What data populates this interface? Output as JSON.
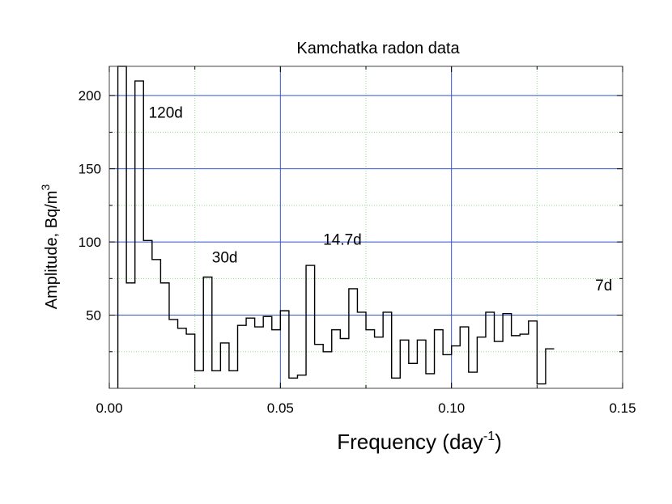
{
  "chart_data": {
    "type": "step",
    "title": "Kamchatka radon data",
    "xlabel": "Frequency (day",
    "xlabel_sup": "-1",
    "xlabel_tail": ")",
    "ylabel": "Amplitude, Bq/m",
    "ylabel_sup": "3",
    "xlim": [
      0.0,
      0.15
    ],
    "ylim": [
      0,
      220
    ],
    "xticks": [
      0.0,
      0.05,
      0.1,
      0.15
    ],
    "xtick_labels": [
      "0.00",
      "0.05",
      "0.10",
      "0.15"
    ],
    "xminor": [
      0.025,
      0.075,
      0.125
    ],
    "yticks": [
      50,
      100,
      150,
      200
    ],
    "ytick_labels": [
      "50",
      "100",
      "150",
      "200"
    ],
    "yminor": [
      25,
      75,
      125,
      175
    ],
    "bin_width": 0.0025,
    "x_start": 0.0025,
    "values": [
      400,
      72,
      210,
      101,
      88,
      72,
      47,
      41,
      37,
      12,
      76,
      12,
      31,
      12,
      43,
      48,
      42,
      49,
      40,
      53,
      7,
      9,
      84,
      30,
      25,
      40,
      34,
      68,
      52,
      40,
      35,
      52,
      7,
      33,
      17,
      33,
      10,
      40,
      23,
      29,
      42,
      11,
      35,
      52,
      32,
      51,
      36,
      37,
      46,
      3,
      27
    ],
    "annotations": [
      {
        "text": "120d",
        "x": 0.0115,
        "y": 185
      },
      {
        "text": "30d",
        "x": 0.03,
        "y": 86
      },
      {
        "text": "14.7d",
        "x": 0.0625,
        "y": 98
      },
      {
        "text": "7d",
        "x": 0.142,
        "y": 67
      }
    ],
    "colors": {
      "major_grid": "#3355cc",
      "minor_grid": "#90dd90",
      "line": "#000000",
      "frame": "#444444"
    }
  }
}
